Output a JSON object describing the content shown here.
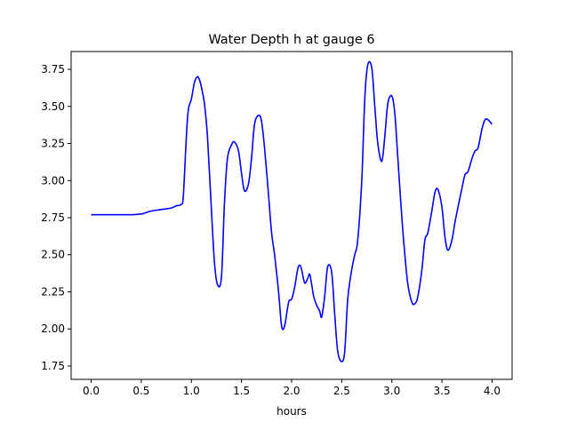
{
  "chart_data": {
    "type": "line",
    "title": "Water Depth h at gauge 6",
    "xlabel": "hours",
    "ylabel": "",
    "xlim": [
      -0.2,
      4.2
    ],
    "ylim": [
      1.66,
      3.87
    ],
    "grid": false,
    "line_color": "#0000ff",
    "x_ticks": [
      0.0,
      0.5,
      1.0,
      1.5,
      2.0,
      2.5,
      3.0,
      3.5,
      4.0
    ],
    "x_tick_labels": [
      "0.0",
      "0.5",
      "1.0",
      "1.5",
      "2.0",
      "2.5",
      "3.0",
      "3.5",
      "4.0"
    ],
    "y_ticks": [
      1.75,
      2.0,
      2.25,
      2.5,
      2.75,
      3.0,
      3.25,
      3.5,
      3.75
    ],
    "y_tick_labels": [
      "1.75",
      "2.00",
      "2.25",
      "2.50",
      "2.75",
      "3.00",
      "3.25",
      "3.50",
      "3.75"
    ],
    "series": [
      {
        "x": [
          0.0,
          0.2,
          0.4,
          0.5,
          0.55,
          0.6,
          0.7,
          0.8,
          0.85,
          0.9,
          0.92,
          0.95,
          0.97,
          1.0,
          1.03,
          1.06,
          1.08,
          1.1,
          1.13,
          1.16,
          1.2,
          1.23,
          1.26,
          1.3,
          1.33,
          1.36,
          1.4,
          1.43,
          1.47,
          1.5,
          1.53,
          1.57,
          1.6,
          1.63,
          1.67,
          1.7,
          1.73,
          1.77,
          1.8,
          1.83,
          1.87,
          1.9,
          1.93,
          1.97,
          2.0,
          2.03,
          2.06,
          2.08,
          2.1,
          2.13,
          2.16,
          2.18,
          2.2,
          2.22,
          2.25,
          2.28,
          2.3,
          2.33,
          2.36,
          2.4,
          2.43,
          2.46,
          2.5,
          2.53,
          2.56,
          2.6,
          2.63,
          2.66,
          2.7,
          2.73,
          2.76,
          2.8,
          2.83,
          2.86,
          2.9,
          2.93,
          2.96,
          3.0,
          3.03,
          3.06,
          3.1,
          3.13,
          3.16,
          3.2,
          3.23,
          3.26,
          3.3,
          3.33,
          3.36,
          3.4,
          3.43,
          3.46,
          3.5,
          3.53,
          3.56,
          3.6,
          3.63,
          3.66,
          3.7,
          3.73,
          3.76,
          3.8,
          3.83,
          3.86,
          3.9,
          3.93,
          3.96,
          4.0
        ],
        "values": [
          2.77,
          2.77,
          2.77,
          2.775,
          2.785,
          2.795,
          2.805,
          2.815,
          2.83,
          2.84,
          2.9,
          3.3,
          3.48,
          3.55,
          3.66,
          3.7,
          3.68,
          3.63,
          3.52,
          3.3,
          2.8,
          2.45,
          2.3,
          2.35,
          2.85,
          3.15,
          3.24,
          3.26,
          3.2,
          3.05,
          2.93,
          2.98,
          3.15,
          3.38,
          3.44,
          3.4,
          3.22,
          2.9,
          2.65,
          2.5,
          2.25,
          2.02,
          2.02,
          2.18,
          2.2,
          2.28,
          2.4,
          2.43,
          2.4,
          2.31,
          2.34,
          2.37,
          2.3,
          2.22,
          2.16,
          2.12,
          2.08,
          2.22,
          2.42,
          2.38,
          2.1,
          1.85,
          1.78,
          1.85,
          2.2,
          2.4,
          2.5,
          2.6,
          3.0,
          3.55,
          3.78,
          3.76,
          3.5,
          3.25,
          3.13,
          3.3,
          3.52,
          3.57,
          3.45,
          3.15,
          2.75,
          2.5,
          2.3,
          2.18,
          2.17,
          2.22,
          2.4,
          2.6,
          2.65,
          2.8,
          2.92,
          2.94,
          2.82,
          2.62,
          2.53,
          2.6,
          2.72,
          2.82,
          2.95,
          3.04,
          3.06,
          3.15,
          3.2,
          3.22,
          3.35,
          3.41,
          3.41,
          3.38
        ]
      }
    ]
  }
}
